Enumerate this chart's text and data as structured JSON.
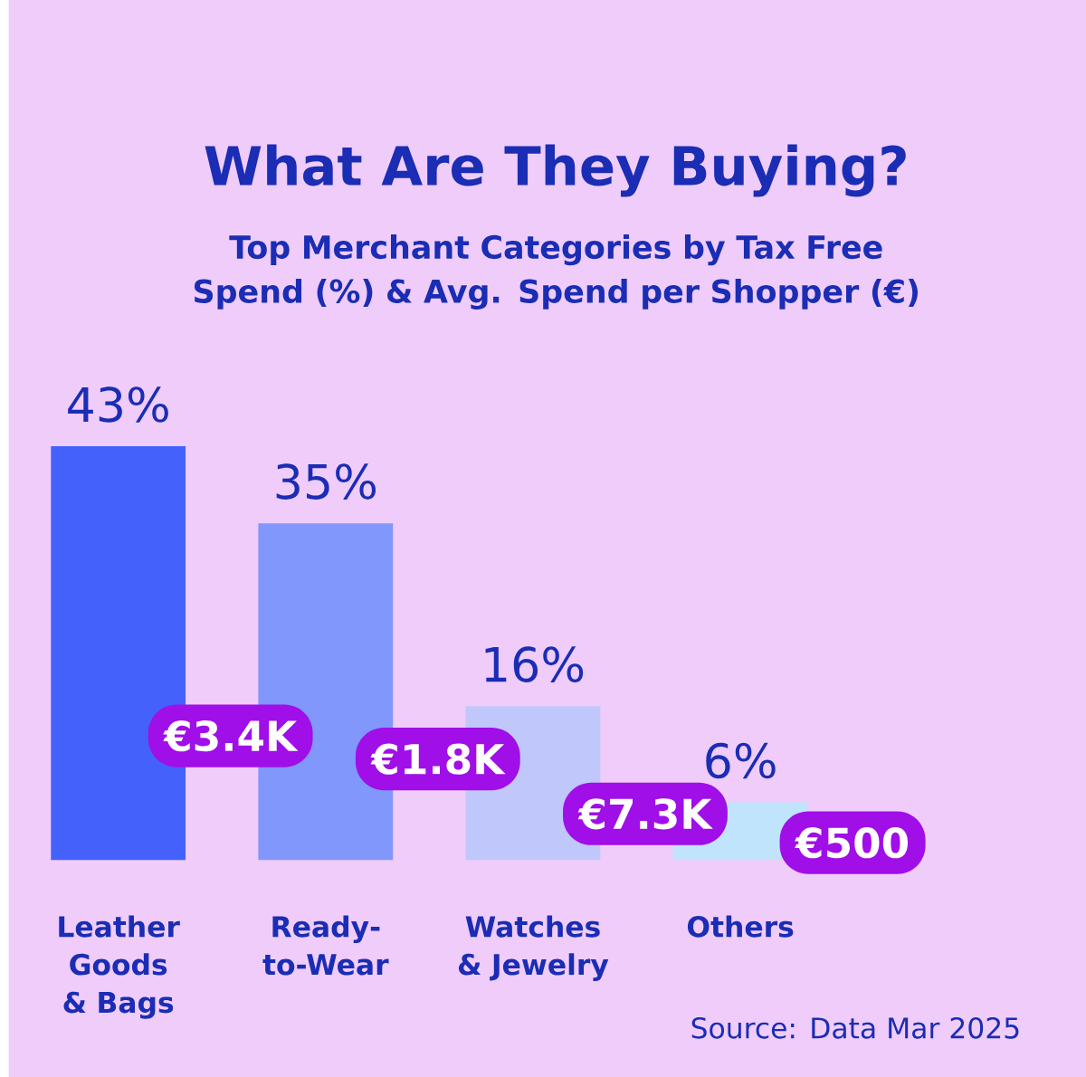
{
  "chart_data": {
    "type": "bar",
    "title": "What Are They Buying?",
    "subtitle": "Top Merchant Categories by Tax Free Spend (%) & Avg. Spend per Shopper (€)",
    "categories": [
      "Leather Goods & Bags",
      "Ready-to-Wear",
      "Watches & Jewelry",
      "Others"
    ],
    "values": [
      43,
      35,
      16,
      6
    ],
    "colors": [
      "#4461fb",
      "#8197fb",
      "#c0c8fb",
      "#bfe4fb"
    ],
    "value_labels": [
      "43%",
      "35%",
      "16%",
      "6%"
    ],
    "annotations": [
      "€3.4K",
      "€1.8K",
      "€7.3K",
      "€500",
      "Source: Data Mar 2025"
    ]
  }
}
